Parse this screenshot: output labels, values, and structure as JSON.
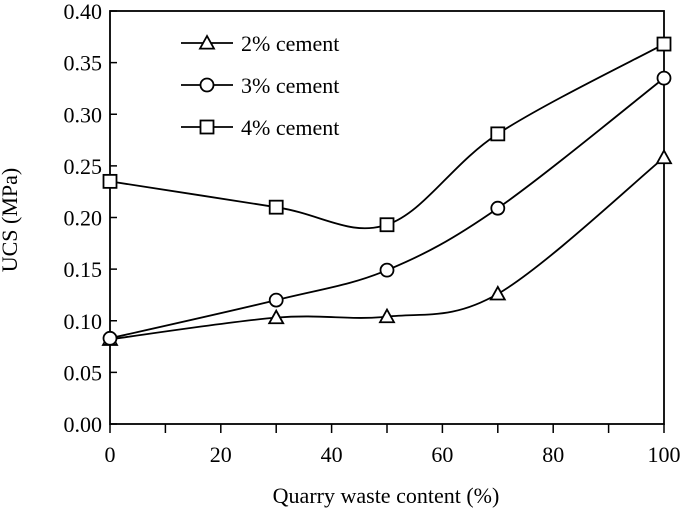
{
  "chart_data": {
    "type": "line",
    "title": "",
    "xlabel": "Quarry waste content (%)",
    "ylabel": "UCS (MPa)",
    "xlim": [
      0,
      100
    ],
    "ylim": [
      0,
      0.4
    ],
    "x_ticks": [
      "0",
      "20",
      "40",
      "60",
      "80",
      "100"
    ],
    "y_ticks": [
      "0.00",
      "0.05",
      "0.10",
      "0.15",
      "0.20",
      "0.25",
      "0.30",
      "0.35",
      "0.40"
    ],
    "grid": false,
    "legend_position": "top-left",
    "x": [
      0,
      30,
      50,
      70,
      100
    ],
    "series": [
      {
        "name": "2% cement",
        "marker": "triangle",
        "values": [
          0.082,
          0.103,
          0.104,
          0.126,
          0.258
        ]
      },
      {
        "name": "3% cement",
        "marker": "circle",
        "values": [
          0.083,
          0.12,
          0.149,
          0.209,
          0.335
        ]
      },
      {
        "name": "4% cement",
        "marker": "square",
        "values": [
          0.235,
          0.21,
          0.193,
          0.281,
          0.368
        ]
      }
    ]
  }
}
